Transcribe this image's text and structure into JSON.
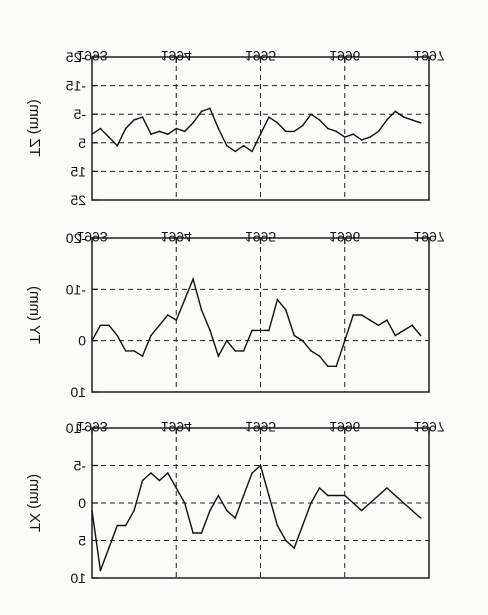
{
  "chart_data": [
    {
      "type": "line",
      "ylabel": "TZ (mm)",
      "x_ticks": [
        "1993",
        "1994",
        "1995",
        "1996",
        "1997"
      ],
      "ylim": [
        -25,
        25
      ],
      "y_ticks": [
        "-25",
        "-15",
        "-5",
        "5",
        "15",
        "25"
      ],
      "y_tick_values": [
        -25,
        -15,
        -5,
        5,
        15,
        25
      ],
      "x": [
        1993.0,
        1993.1,
        1993.2,
        1993.3,
        1993.4,
        1993.5,
        1993.6,
        1993.7,
        1993.8,
        1993.9,
        1994.0,
        1994.1,
        1994.2,
        1994.3,
        1994.4,
        1994.5,
        1994.6,
        1994.7,
        1994.8,
        1994.9,
        1995.0,
        1995.1,
        1995.2,
        1995.3,
        1995.4,
        1995.5,
        1995.6,
        1995.7,
        1995.8,
        1995.9,
        1996.0,
        1996.1,
        1996.2,
        1996.3,
        1996.4,
        1996.5,
        1996.6,
        1996.7,
        1996.8,
        1996.9
      ],
      "y": [
        2,
        0,
        3,
        6,
        0,
        -3,
        -4,
        2,
        1,
        2,
        0,
        1,
        -2,
        -6,
        -7,
        0,
        6,
        8,
        6,
        8,
        2,
        -4,
        -2,
        1,
        1,
        -1,
        -5,
        -3,
        0,
        1,
        3,
        2,
        4,
        3,
        1,
        -3,
        -6,
        -4,
        -3,
        -2
      ],
      "color": "#111111",
      "grid": "dashed"
    },
    {
      "type": "line",
      "ylabel": "TY (mm)",
      "x_ticks": [
        "1993",
        "1994",
        "1995",
        "1996",
        "1997"
      ],
      "ylim": [
        -20,
        10
      ],
      "y_ticks": [
        "-20",
        "-10",
        "0",
        "10"
      ],
      "y_tick_values": [
        -20,
        -10,
        0,
        10
      ],
      "x": [
        1993.0,
        1993.1,
        1993.2,
        1993.3,
        1993.4,
        1993.5,
        1993.6,
        1993.7,
        1993.8,
        1993.9,
        1994.0,
        1994.1,
        1994.2,
        1994.3,
        1994.4,
        1994.5,
        1994.6,
        1994.7,
        1994.8,
        1994.9,
        1995.0,
        1995.1,
        1995.2,
        1995.3,
        1995.4,
        1995.5,
        1995.6,
        1995.7,
        1995.8,
        1995.9,
        1996.0,
        1996.1,
        1996.2,
        1996.3,
        1996.4,
        1996.5,
        1996.6,
        1996.7,
        1996.8,
        1996.9
      ],
      "y": [
        0,
        -3,
        -3,
        -1,
        2,
        2,
        3,
        -1,
        -3,
        -5,
        -4,
        -8,
        -12,
        -6,
        -2,
        3,
        0,
        2,
        2,
        -2,
        -2,
        -2,
        -8,
        -6,
        -1,
        0,
        2,
        3,
        5,
        5,
        0,
        -5,
        -5,
        -4,
        -3,
        -4,
        -1,
        -2,
        -3,
        -1
      ],
      "color": "#111111",
      "grid": "dashed"
    },
    {
      "type": "line",
      "ylabel": "TX (mm)",
      "x_ticks": [
        "1993",
        "1994",
        "1995",
        "1996",
        "1997"
      ],
      "ylim": [
        -10,
        10
      ],
      "y_ticks": [
        "-10",
        "-5",
        "0",
        "5",
        "10"
      ],
      "y_tick_values": [
        -10,
        -5,
        0,
        5,
        10
      ],
      "x": [
        1993.0,
        1993.1,
        1993.2,
        1993.3,
        1993.4,
        1993.5,
        1993.6,
        1993.7,
        1993.8,
        1993.9,
        1994.0,
        1994.1,
        1994.2,
        1994.3,
        1994.4,
        1994.5,
        1994.6,
        1994.7,
        1994.8,
        1994.9,
        1995.0,
        1995.1,
        1995.2,
        1995.3,
        1995.4,
        1995.5,
        1995.6,
        1995.7,
        1995.8,
        1995.9,
        1996.0,
        1996.1,
        1996.2,
        1996.3,
        1996.4,
        1996.5,
        1996.6,
        1996.7,
        1996.8,
        1996.9
      ],
      "y": [
        1,
        9,
        6,
        3,
        3,
        1,
        -3,
        -4,
        -3,
        -4,
        -2,
        0,
        4,
        4,
        1,
        -1,
        1,
        2,
        -1,
        -4,
        -5,
        -1,
        3,
        5,
        6,
        3,
        0,
        -2,
        -1,
        -1,
        -1,
        0,
        1,
        0,
        -1,
        -2,
        -1,
        0,
        1,
        2
      ],
      "color": "#111111",
      "grid": "dashed"
    }
  ]
}
